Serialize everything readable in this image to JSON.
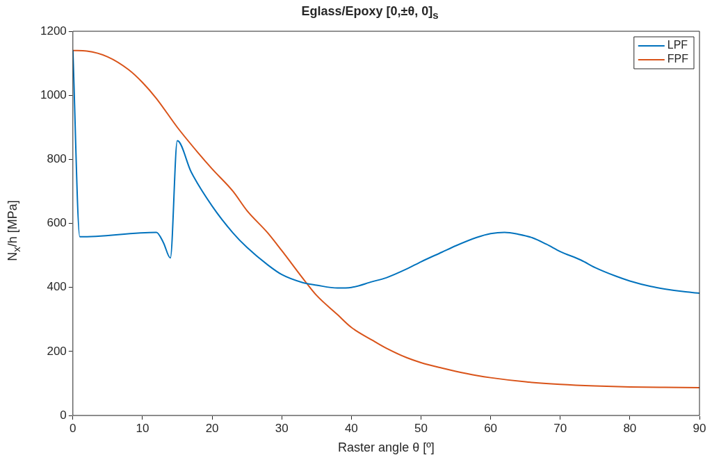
{
  "chart_data": {
    "type": "line",
    "title": "Eglass/Epoxy [0,±θ, 0]$_{s}$",
    "xlabel": "Raster angle θ [º]",
    "ylabel": "N$_{x}$/h [MPa]",
    "xlim": [
      0,
      90
    ],
    "xticks": [
      0,
      10,
      20,
      30,
      40,
      50,
      60,
      70,
      80,
      90
    ],
    "ylim": [
      0,
      1200
    ],
    "yticks": [
      0,
      200,
      400,
      600,
      800,
      1000,
      1200
    ],
    "grid": false,
    "legend": "top right",
    "marker": "none",
    "line_style": "solid",
    "series": [
      {
        "name": "LPF",
        "color": "#0072bd",
        "x": [
          0,
          1,
          12,
          13,
          14,
          15,
          17,
          20,
          23,
          25,
          28,
          30,
          33,
          35,
          38,
          40,
          43,
          45,
          48,
          50,
          53,
          55,
          58,
          60,
          62,
          64,
          66,
          68,
          70,
          73,
          75,
          78,
          80,
          83,
          85,
          88,
          90
        ],
        "values": [
          1140,
          558,
          572,
          540,
          492,
          858,
          760,
          654,
          570,
          525,
          470,
          440,
          415,
          407,
          398,
          400,
          418,
          430,
          458,
          480,
          510,
          530,
          556,
          568,
          572,
          566,
          555,
          535,
          512,
          485,
          462,
          435,
          420,
          403,
          395,
          386,
          382
        ]
      },
      {
        "name": "FPF",
        "color": "#d95319",
        "x": [
          0,
          2,
          5,
          8,
          10,
          12,
          15,
          18,
          20,
          23,
          25,
          28,
          30,
          33.5,
          35,
          38,
          40,
          43,
          45,
          48,
          50,
          53,
          55,
          58,
          60,
          65,
          70,
          75,
          80,
          85,
          90
        ],
        "values": [
          1140,
          1138,
          1120,
          1080,
          1040,
          990,
          900,
          820,
          770,
          700,
          640,
          570,
          515,
          415,
          375,
          315,
          275,
          235,
          210,
          180,
          165,
          148,
          138,
          125,
          118,
          105,
          97,
          92,
          89,
          88,
          87
        ]
      }
    ]
  }
}
